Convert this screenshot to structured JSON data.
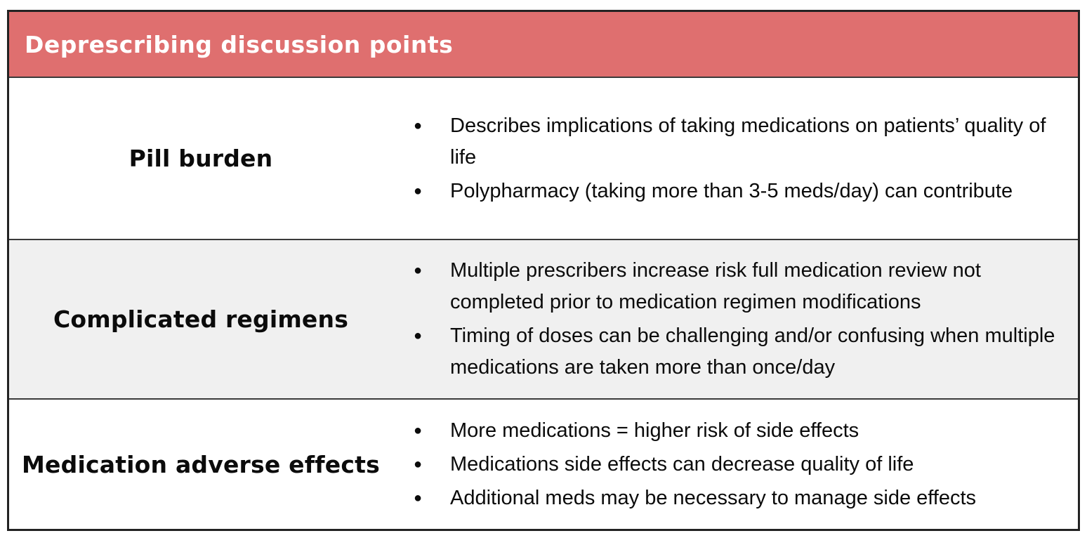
{
  "table": {
    "title": "Deprescribing discussion points",
    "rows": [
      {
        "label": "Pill burden",
        "bullets": [
          "Describes implications of taking medications on patients’ quality of life",
          "Polypharmacy (taking more than 3-5 meds/day) can contribute"
        ]
      },
      {
        "label": "Complicated regimens",
        "bullets": [
          "Multiple prescribers increase risk full medication review not completed prior to medication regimen modifications",
          "Timing of doses can be challenging and/or confusing when multiple medications are taken more than once/day"
        ]
      },
      {
        "label": "Medication adverse effects",
        "bullets": [
          "More medications = higher risk of side effects",
          "Medications side effects can decrease quality of life",
          "Additional meds may be necessary to manage side effects"
        ]
      }
    ],
    "colors": {
      "header_bg": "#DF6F6F",
      "header_text": "#FFFFFF",
      "alt_row_bg": "#F0F0F0",
      "body_text": "#0B0B0B",
      "border": "#2B2B2B"
    }
  }
}
